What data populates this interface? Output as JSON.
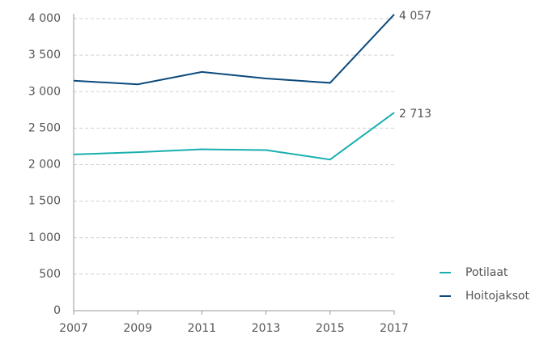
{
  "chart_data": {
    "type": "line",
    "x": [
      2007,
      2009,
      2011,
      2013,
      2015,
      2017
    ],
    "series": [
      {
        "name": "Potilaat",
        "color": "#1aafb0",
        "values": [
          2140,
          2170,
          2210,
          2200,
          2070,
          2713
        ],
        "value_labels": [
          null,
          null,
          null,
          null,
          null,
          "2 713"
        ]
      },
      {
        "name": "Hoitojaksot",
        "color": "#0b4a7d",
        "values": [
          3150,
          3100,
          3270,
          3180,
          3120,
          4057
        ],
        "value_labels": [
          null,
          null,
          null,
          null,
          null,
          "4 057"
        ]
      }
    ],
    "xlim": [
      2007,
      2017
    ],
    "xticks": [
      2007,
      2009,
      2011,
      2013,
      2015,
      2017
    ],
    "ylim": [
      0,
      4000
    ],
    "yticks": [
      0,
      500,
      {
        "value": 1000,
        "label": "1 000"
      },
      {
        "value": 1500,
        "label": "1 500"
      },
      {
        "value": 2000,
        "label": "2 000"
      },
      {
        "value": 2500,
        "label": "2 500"
      },
      {
        "value": 3000,
        "label": "3 000"
      },
      {
        "value": 3500,
        "label": "3 500"
      },
      {
        "value": 4000,
        "label": "4 000"
      }
    ],
    "grid": true,
    "legend": "right"
  }
}
